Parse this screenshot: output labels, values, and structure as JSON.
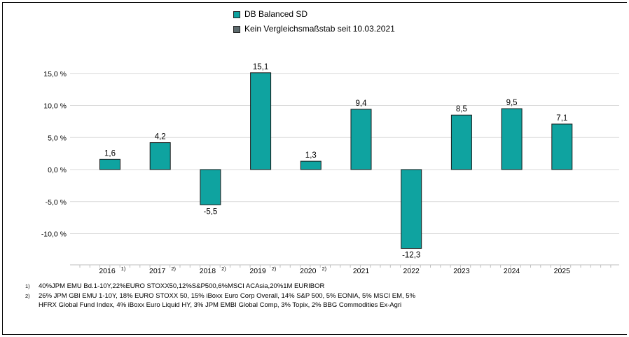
{
  "chart_data": {
    "type": "bar",
    "categories": [
      "2016",
      "2017",
      "2018",
      "2019",
      "2020",
      "2021",
      "2022",
      "2023",
      "2024",
      "2025"
    ],
    "category_marks": [
      "1)",
      "2)",
      "2)",
      "2)",
      "2)",
      "",
      "",
      "",
      "",
      ""
    ],
    "series": [
      {
        "name": "DB Balanced SD",
        "values": [
          1.6,
          4.2,
          -5.5,
          15.1,
          1.3,
          9.4,
          -12.3,
          8.5,
          9.5,
          7.1
        ],
        "labels": [
          "1,6",
          "4,2",
          "-5,5",
          "15,1",
          "1,3",
          "9,4",
          "-12,3",
          "8,5",
          "9,5",
          "7,1"
        ],
        "color": "#0fa3a0"
      }
    ],
    "yticks": [
      15,
      10,
      5,
      0,
      -5,
      -10
    ],
    "ytick_labels": [
      "15,0 %",
      "10,0 %",
      "5,0 %",
      "0,0 %",
      "-5,0 %",
      "-10,0 %"
    ],
    "ylim": [
      -13.6,
      17.5
    ],
    "grid": true,
    "legend": [
      {
        "label": "DB Balanced SD",
        "color": "#0fa3a0"
      },
      {
        "label": "Kein Vergleichsmaßstab seit 10.03.2021",
        "color": "#5e6b6e"
      }
    ],
    "legend_position": "top-center"
  },
  "footnotes": [
    {
      "mark": "1)",
      "text": "40%JPM EMU Bd.1-10Y,22%EURO STOXX50,12%S&P500,6%MSCI ACAsia,20%1M EURIBOR"
    },
    {
      "mark": "2)",
      "text": "26% JPM GBI EMU 1-10Y, 18% EURO STOXX 50, 15% iBoxx Euro Corp Overall, 14% S&P 500, 5% EONIA, 5% MSCI EM, 5% HFRX Global Fund Index, 4% iBoxx Euro Liquid HY, 3% JPM EMBI Global Comp, 3% Topix, 2% BBG Commodities Ex-Agri"
    }
  ]
}
